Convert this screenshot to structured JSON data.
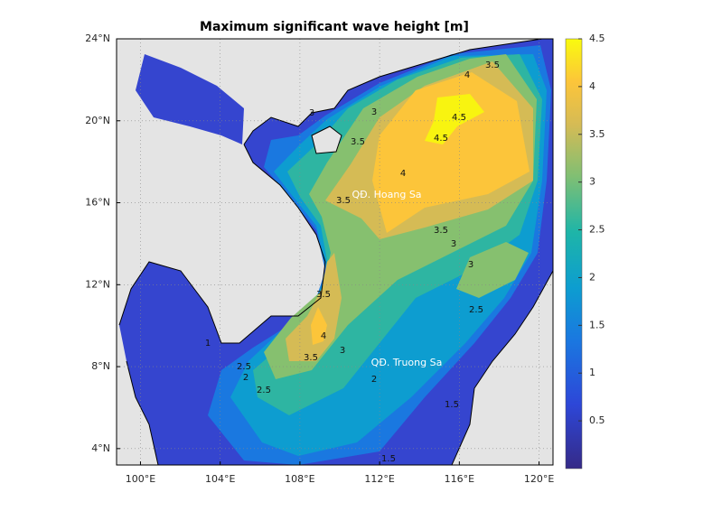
{
  "title": "Maximum significant wave height [m]",
  "map": {
    "lonlim": [
      98.8,
      120.7
    ],
    "latlim": [
      3.2,
      24
    ],
    "lon_ticks": [
      {
        "value": 100,
        "label": "100°E"
      },
      {
        "value": 104,
        "label": "104°E"
      },
      {
        "value": 108,
        "label": "108°E"
      },
      {
        "value": 112,
        "label": "112°E"
      },
      {
        "value": 116,
        "label": "116°E"
      },
      {
        "value": 120,
        "label": "120°E"
      }
    ],
    "lat_ticks": [
      {
        "value": 4,
        "label": "4°N"
      },
      {
        "value": 8,
        "label": "8°N"
      },
      {
        "value": 12,
        "label": "12°N"
      },
      {
        "value": 16,
        "label": "16°N"
      },
      {
        "value": 20,
        "label": "20°N"
      },
      {
        "value": 24,
        "label": "24°N"
      }
    ]
  },
  "colorbar": {
    "lim": [
      0,
      4.5
    ],
    "ticks": [
      0.5,
      1,
      1.5,
      2,
      2.5,
      3,
      3.5,
      4,
      4.5
    ]
  },
  "annotations": [
    "QĐ. Hoang Sa",
    "QĐ. Truong Sa"
  ],
  "contour_labels": [
    3.5,
    4,
    4.5,
    4.5,
    3,
    3.5,
    3,
    3.5,
    4,
    3.5,
    3,
    3,
    2.5,
    3.5,
    4,
    3,
    3.5,
    2.5,
    2,
    1.5,
    1,
    2.5,
    2,
    1.5
  ]
}
